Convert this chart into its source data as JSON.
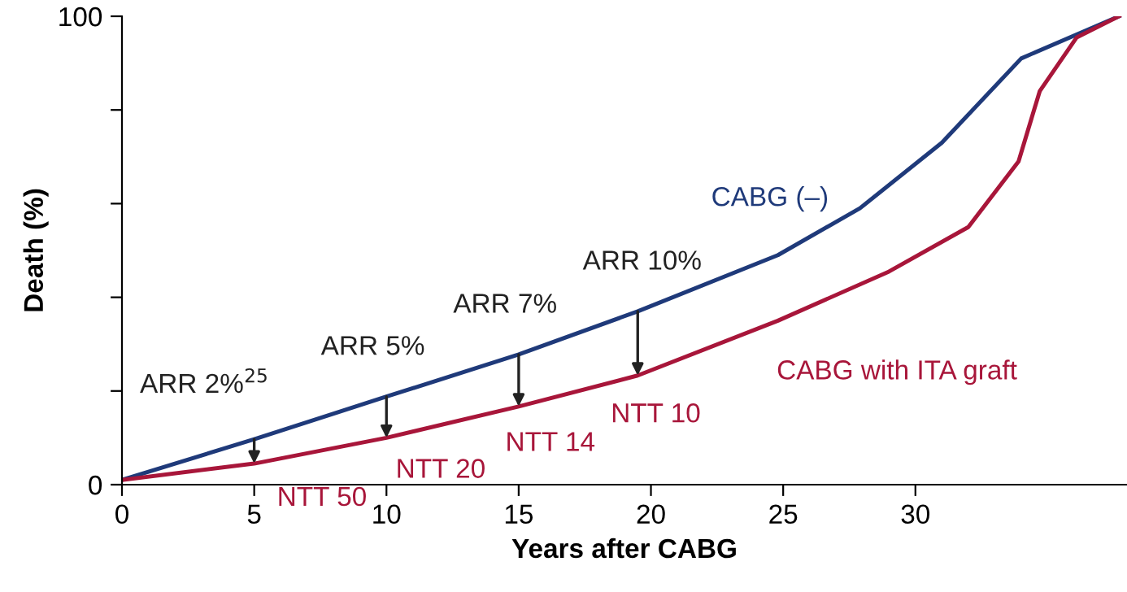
{
  "chart_data": {
    "type": "line",
    "xlabel": "Years after CABG",
    "ylabel": "Death (%)",
    "xlim": [
      0,
      38
    ],
    "xticks": [
      0,
      5,
      10,
      15,
      20,
      25,
      30
    ],
    "ylim": [
      0,
      100
    ],
    "yticks": [
      0,
      {
        "value": 20,
        "label": null
      },
      {
        "value": 40,
        "label": null
      },
      {
        "value": 60,
        "label": null
      },
      {
        "value": 80,
        "label": null
      },
      100
    ],
    "grid": false,
    "legend": false,
    "marker": "none",
    "line_style": "solid",
    "series": [
      {
        "name": "CABG (–)",
        "color": "#1f3a7a",
        "x": [
          0,
          5,
          10,
          15,
          19.5,
          24.8,
          27.9,
          31,
          34,
          37.7
        ],
        "values": [
          1,
          9.7,
          18.8,
          27.8,
          37,
          49,
          59,
          73,
          91,
          100
        ]
      },
      {
        "name": "CABG with ITA graft",
        "color": "#a8163a",
        "x": [
          0,
          5,
          10,
          15,
          19.5,
          24.8,
          29,
          32,
          33.9,
          34.7,
          36.1,
          37.7
        ],
        "values": [
          1,
          4.5,
          10,
          16.7,
          23.3,
          35,
          45.5,
          55,
          69,
          84,
          95.5,
          100
        ]
      }
    ],
    "annotations": [
      {
        "text": "ARR 2%$^{25}$",
        "x": 5,
        "y": 9.7
      },
      {
        "text": "ARR 5%",
        "x": 10,
        "y": 18.8
      },
      {
        "text": "ARR 7%",
        "x": 15,
        "y": 27.8
      },
      {
        "text": "ARR 10%",
        "x": 19.5,
        "y": 37
      },
      {
        "text": "NTT 50",
        "x": 5,
        "y": 4.5
      },
      {
        "text": "NTT 20",
        "x": 10,
        "y": 10
      },
      {
        "text": "NTT 14",
        "x": 15,
        "y": 16.7
      },
      {
        "text": "NTT 10",
        "x": 19.5,
        "y": 23.3
      }
    ]
  }
}
